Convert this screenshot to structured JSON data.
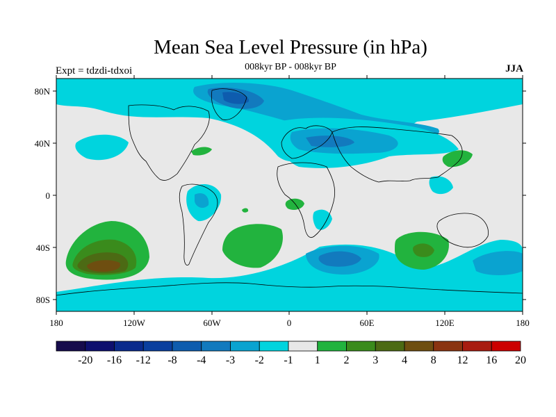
{
  "title": "Mean Sea Level Pressure (in hPa)",
  "subtitle": "008kyr BP - 008kyr BP",
  "left_label": "Expt = tdzdi-tdxoi",
  "right_label": "JJA",
  "axes": {
    "y_ticks": [
      "80N",
      "40N",
      "0",
      "40S",
      "80S"
    ],
    "x_ticks": [
      "180",
      "120W",
      "60W",
      "0",
      "60E",
      "120E",
      "180"
    ]
  },
  "colorbar": {
    "labels": [
      "-20",
      "-16",
      "-12",
      "-8",
      "-4",
      "-3",
      "-2",
      "-1",
      "1",
      "2",
      "3",
      "4",
      "8",
      "12",
      "16",
      "20"
    ],
    "colors": [
      "#160b4c",
      "#0e0f6e",
      "#0a2a8c",
      "#0a3f9e",
      "#0e5cae",
      "#127abe",
      "#0aa3d0",
      "#00d4de",
      "#e8e8e8",
      "#22b33e",
      "#3a8b1c",
      "#4c6a14",
      "#6e4e10",
      "#8a3410",
      "#a81c10",
      "#cc0000"
    ]
  },
  "palette": {
    "land_background": "#e8e8e8",
    "coast": "#000000"
  }
}
